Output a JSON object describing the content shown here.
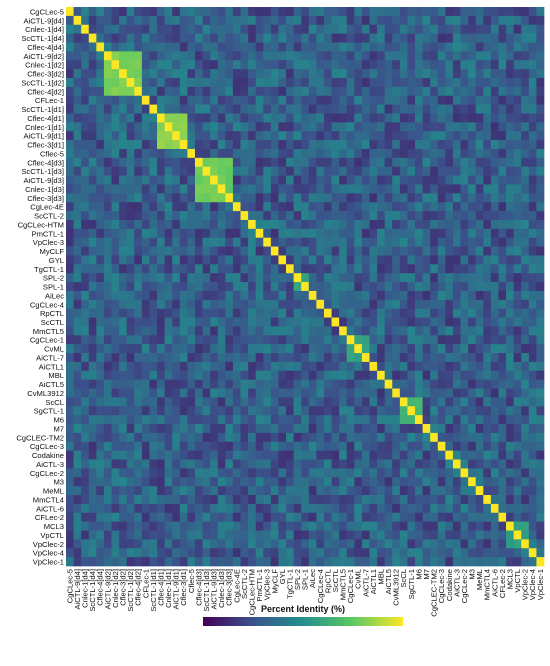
{
  "chart_data": {
    "type": "heatmap",
    "title": "",
    "xlabel": "",
    "ylabel": "",
    "labels": [
      "CgCLec-5",
      "AiCTL-9[d4]",
      "Cnlec-1[d4]",
      "ScCTL-1[d4]",
      "Cflec-4[d4]",
      "AiCTL-9[d2]",
      "Cnlec-1[d2]",
      "Cflec-3[d2]",
      "ScCTL-1[d2]",
      "Cflec-4[d2]",
      "CFLec-1",
      "ScCTL-1[d1]",
      "Cflec-4[d1]",
      "Cnlec-1[d1]",
      "AiCTL-9[d1]",
      "Cflec-3[d1]",
      "Cflec-5",
      "Cflec-4[d3]",
      "ScCTL-1[d3]",
      "AiCTL-9[d3]",
      "Cnlec-1[d3]",
      "Cflec-3[d3]",
      "CgLec-4E",
      "ScCTL-2",
      "CgCLec-HTM",
      "PmCTL-1",
      "VpClec-3",
      "MyCLF",
      "GYL",
      "TgCTL-1",
      "SPL-2",
      "SPL-1",
      "AiLec",
      "CgCLec-4",
      "RpCTL",
      "ScCTL",
      "MmCTL5",
      "CgCLec-1",
      "CvML",
      "AiCTL-7",
      "AiCTL1",
      "MBL",
      "AiCTL5",
      "CvML3912",
      "ScCL",
      "SgCTL-1",
      "M6",
      "M7",
      "CgCLEC-TM2",
      "CgCLec-3",
      "Codakine",
      "AiCTL-3",
      "CgCLec-2",
      "M3",
      "MeML",
      "MmCTL4",
      "AiCTL-6",
      "CFLec-2",
      "MCL3",
      "VpCTL",
      "VpClec-2",
      "VpClec-4",
      "VpClec-1"
    ],
    "blocks": [
      {
        "rows": [
          5,
          6,
          7,
          8,
          9
        ],
        "identity": 0.82
      },
      {
        "rows": [
          12,
          13,
          14,
          15
        ],
        "identity": 0.85
      },
      {
        "rows": [
          17,
          18,
          19,
          20,
          21
        ],
        "identity": 0.8
      },
      {
        "rows": [
          30,
          31
        ],
        "identity": 0.62
      },
      {
        "rows": [
          37,
          38,
          39
        ],
        "identity": 0.6
      },
      {
        "rows": [
          44,
          45,
          46
        ],
        "identity": 0.68
      },
      {
        "rows": [
          58,
          59,
          60
        ],
        "identity": 0.58
      }
    ],
    "background_identity_range": [
      0.15,
      0.45
    ],
    "diagonal_identity": 1.0,
    "colorbar": {
      "label": "Percent Identity (%)",
      "colormap": "viridis",
      "range": [
        0,
        100
      ]
    },
    "colors": [
      "#440154",
      "#3b528b",
      "#21918c",
      "#5ec962",
      "#fde725"
    ],
    "grid": false,
    "legend_position": "bottom"
  }
}
